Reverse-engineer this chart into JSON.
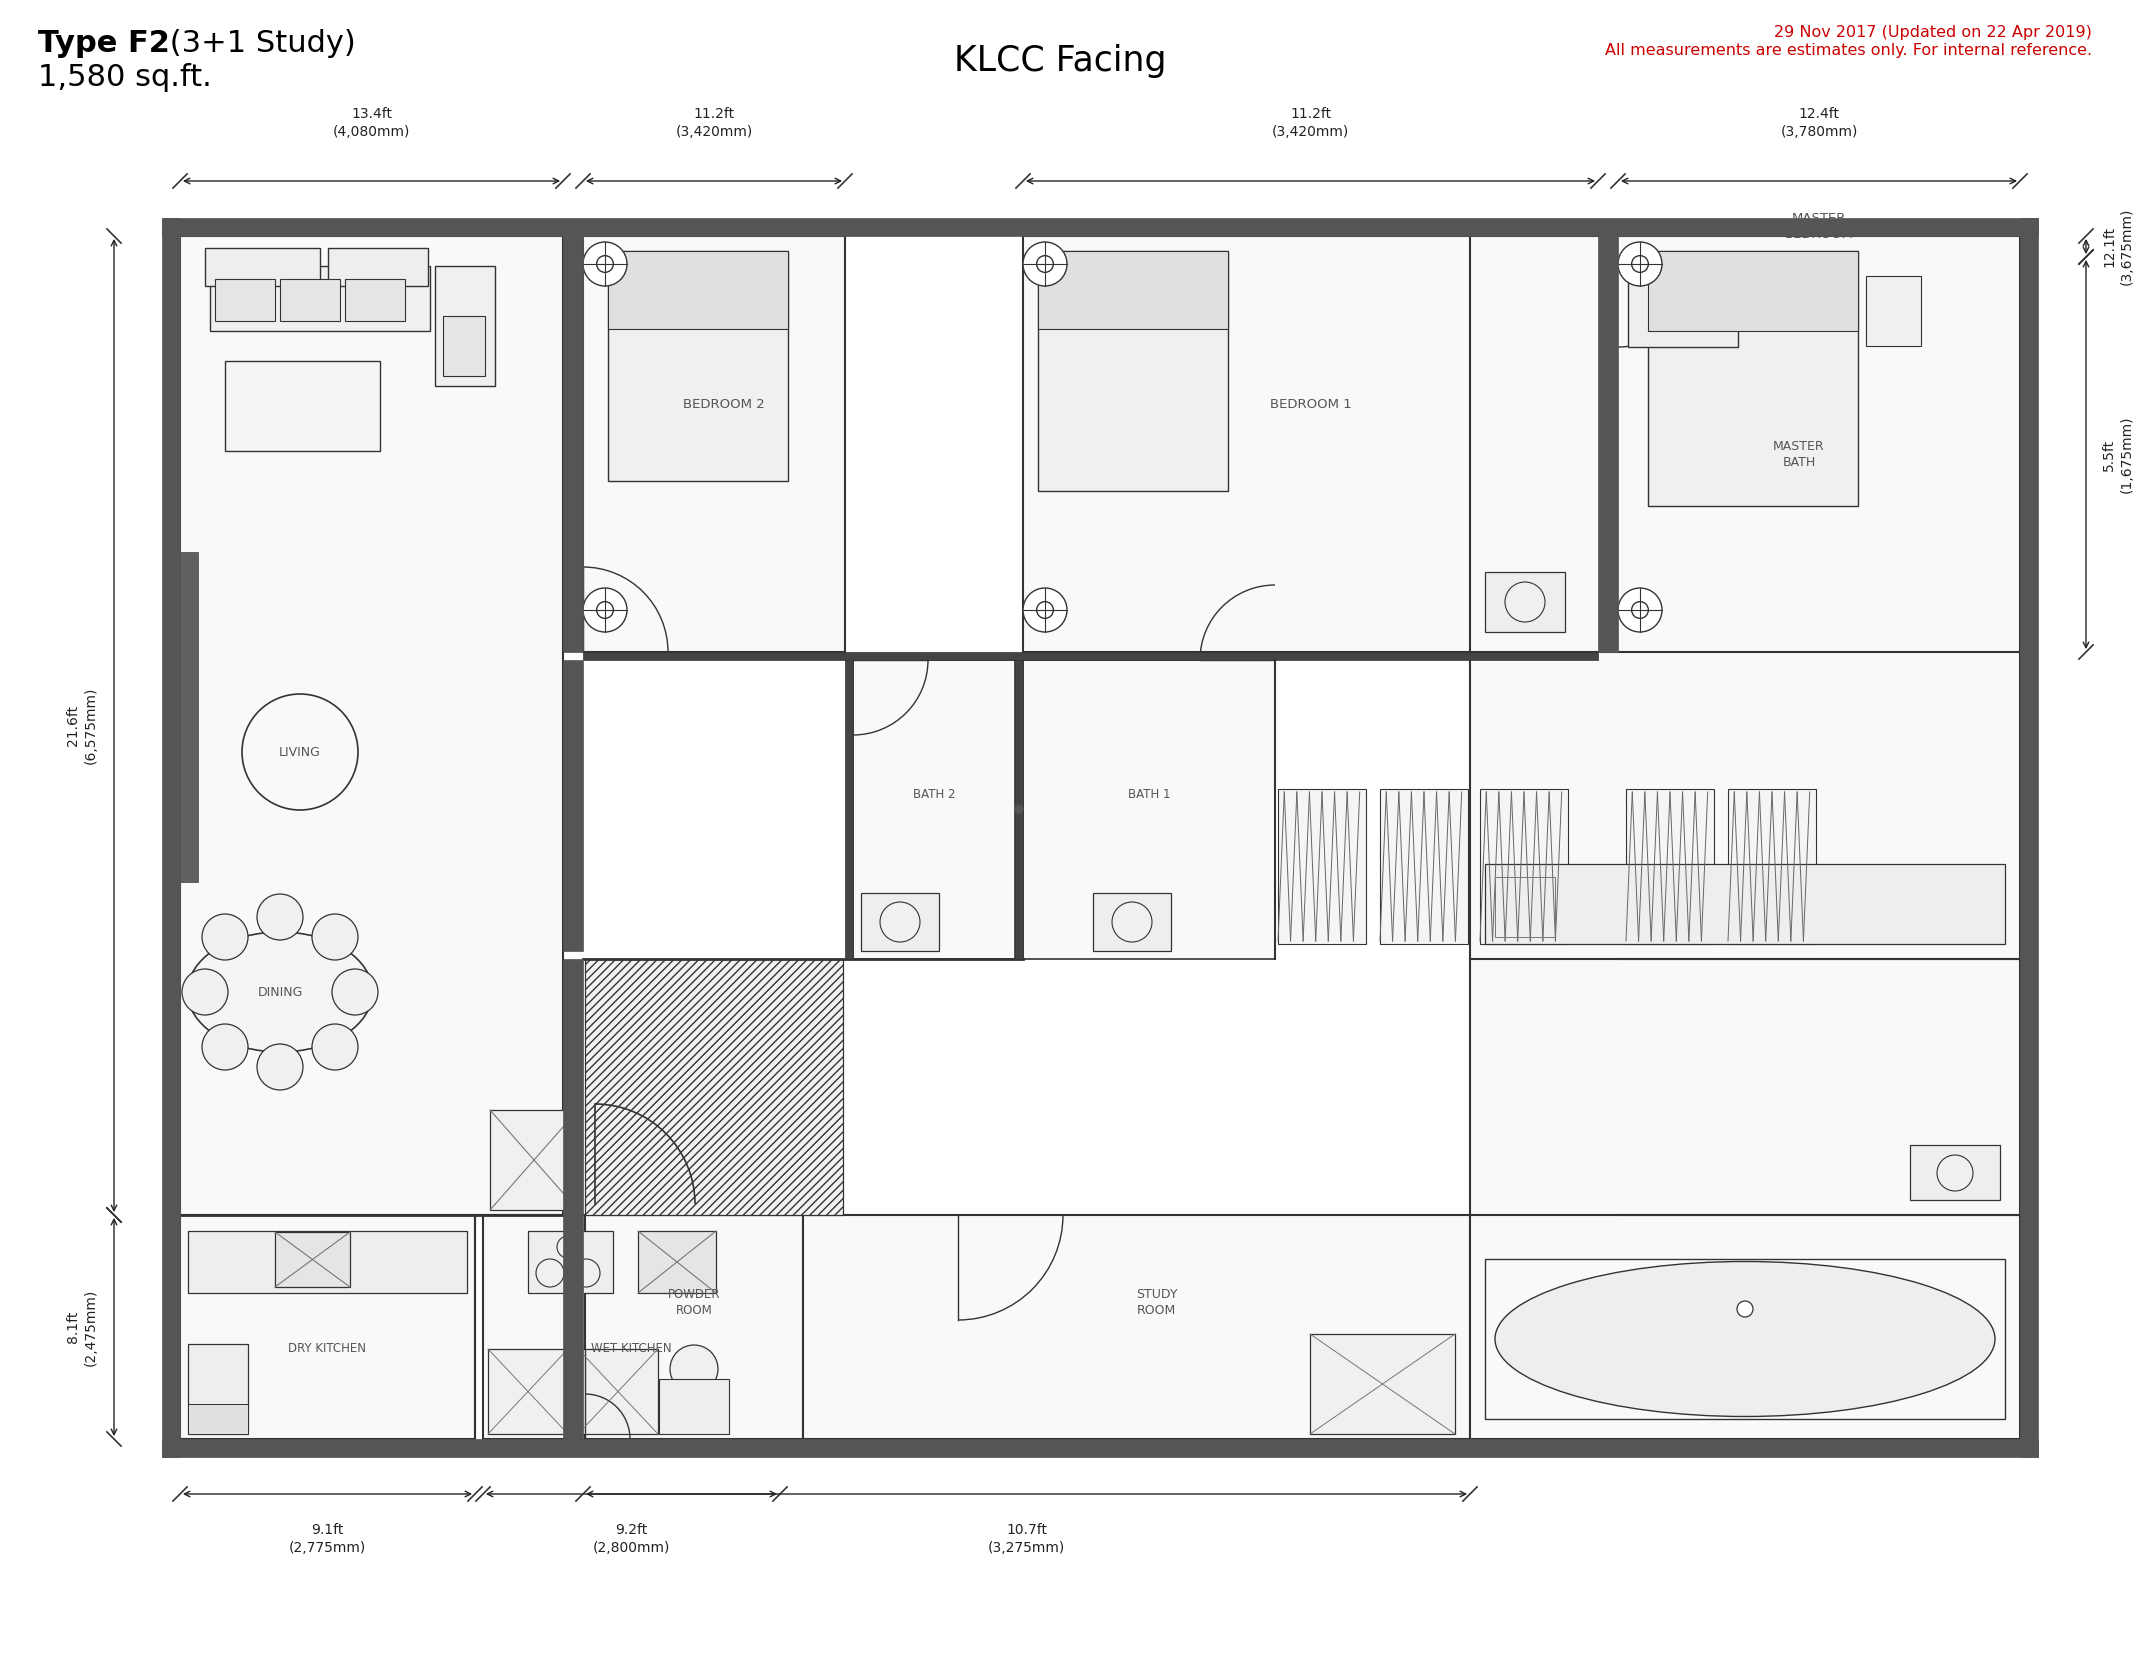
{
  "title_bold": "Type F2",
  "title_rest": " (3+1 Study)",
  "subtitle": "1,580 sq.ft.",
  "center_title": "KLCC Facing",
  "date_line1": "29 Nov 2017 (Updated on 22 Apr 2019)",
  "date_line2": "All measurements are estimates only. For internal reference.",
  "dim_top_13": "13.4ft\n(4,080mm)",
  "dim_top_11a": "11.2ft\n(3,420mm)",
  "dim_top_11b": "11.2ft\n(3,420mm)",
  "dim_top_12": "12.4ft\n(3,780mm)",
  "dim_left_21": "21.6ft\n(6,575mm)",
  "dim_left_8": "8.1ft\n(2,475mm)",
  "dim_right_12": "12.1ft\n(3,675mm)",
  "dim_right_5": "5.5ft\n(1,675mm)",
  "dim_bot_9a": "9.1ft\n(2,775mm)",
  "dim_bot_9b": "9.2ft\n(2,800mm)",
  "dim_bot_10": "10.7ft\n(3,275mm)",
  "wall_color": "#555555",
  "line_color": "#333333",
  "bg_color": "#ffffff",
  "red_color": "#cc0000",
  "label_color": "#555555"
}
